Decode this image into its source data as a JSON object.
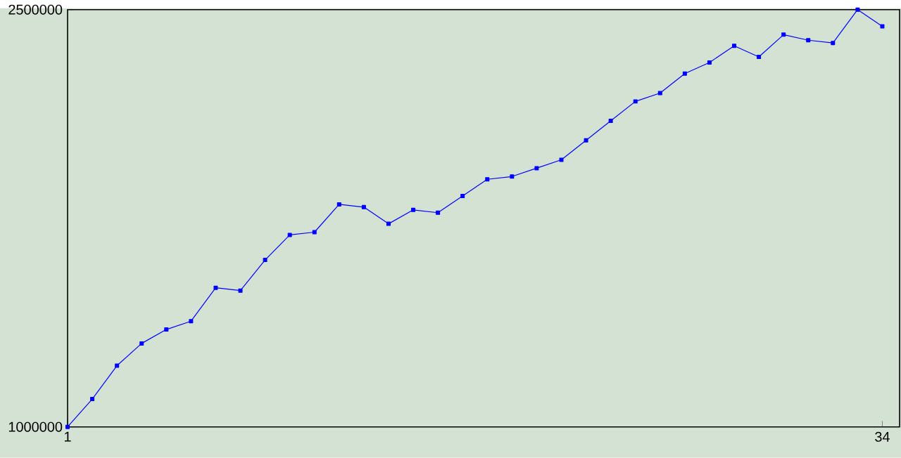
{
  "chart_data": {
    "type": "line",
    "x": [
      1,
      2,
      3,
      4,
      5,
      6,
      7,
      8,
      9,
      10,
      11,
      12,
      13,
      14,
      15,
      16,
      17,
      18,
      19,
      20,
      21,
      22,
      23,
      24,
      25,
      26,
      27,
      28,
      29,
      30,
      31,
      32,
      33,
      34
    ],
    "series": [
      {
        "color": "#0000ff",
        "values": [
          1000000,
          1100000,
          1220000,
          1300000,
          1350000,
          1380000,
          1500000,
          1490000,
          1600000,
          1690000,
          1700000,
          1800000,
          1790000,
          1730000,
          1780000,
          1770000,
          1830000,
          1890000,
          1900000,
          1930000,
          1960000,
          2030000,
          2100000,
          2170000,
          2200000,
          2270000,
          2310000,
          2370000,
          2330000,
          2410000,
          2390000,
          2380000,
          2500000,
          2440000
        ]
      }
    ],
    "xlim": [
      1,
      34.7
    ],
    "ylim": [
      1000000,
      2500000
    ],
    "xticks": [
      1,
      34
    ],
    "yticks": [
      1000000,
      2500000
    ],
    "grid": false,
    "marker": "square",
    "line_style": "solid"
  }
}
